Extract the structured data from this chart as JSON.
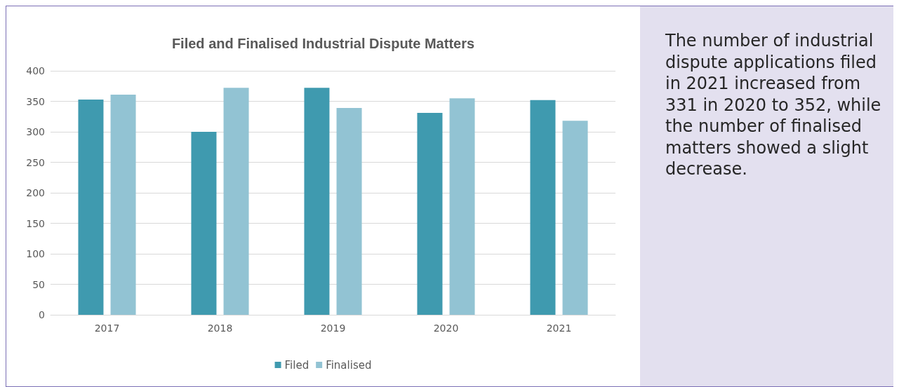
{
  "chart_data": {
    "type": "bar",
    "title": "Filed and Finalised Industrial Dispute Matters",
    "categories": [
      "2017",
      "2018",
      "2019",
      "2020",
      "2021"
    ],
    "series": [
      {
        "name": "Filed",
        "color": "#3f9aaf",
        "values": [
          353,
          300,
          372,
          331,
          352
        ]
      },
      {
        "name": "Finalised",
        "color": "#92c3d3",
        "values": [
          361,
          372,
          339,
          355,
          318
        ]
      }
    ],
    "ylim": [
      0,
      400
    ],
    "yticks": [
      0,
      50,
      100,
      150,
      200,
      250,
      300,
      350,
      400
    ],
    "grid": "y",
    "legend": "bottom",
    "annotations": [
      "The number of industrial dispute applications filed in 2021 increased from 331 in 2020 to 352, while the number of finalised matters showed a slight decrease."
    ]
  }
}
